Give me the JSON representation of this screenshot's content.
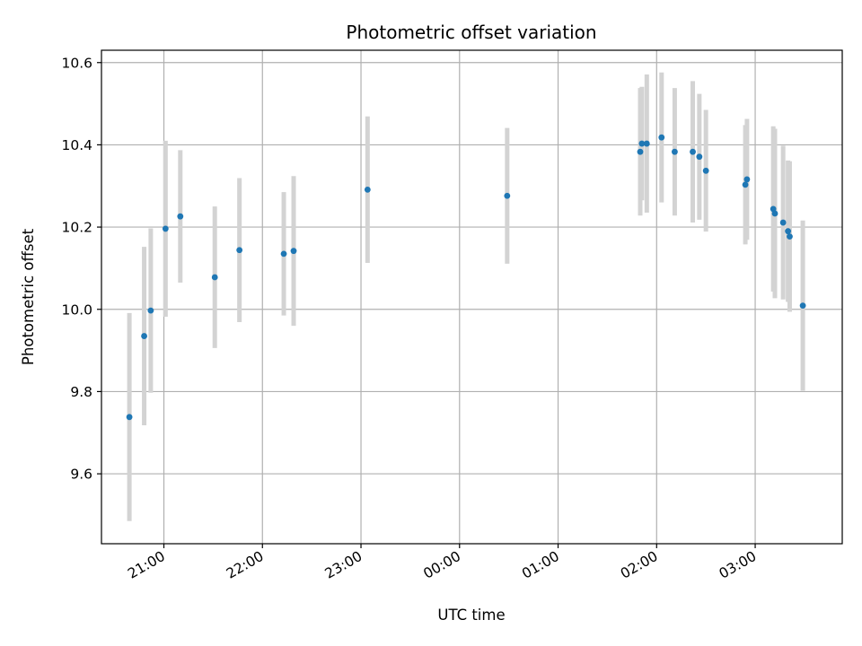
{
  "chart_data": {
    "type": "scatter",
    "title": "Photometric offset variation",
    "xlabel": "UTC time",
    "ylabel": "Photometric offset",
    "x_axis_type": "time",
    "xlim": [
      "20:22",
      "03:53"
    ],
    "ylim": [
      9.43,
      10.63
    ],
    "grid": true,
    "x_ticks": [
      "21:00",
      "22:00",
      "23:00",
      "00:00",
      "01:00",
      "02:00",
      "03:00"
    ],
    "y_ticks": [
      9.6,
      9.8,
      10.0,
      10.2,
      10.4,
      10.6
    ],
    "y_tick_labels": [
      "9.6",
      "9.8",
      "10.0",
      "10.2",
      "10.4",
      "10.6"
    ],
    "marker_color": "#1f77b4",
    "errorbar_color": "#d3d3d3",
    "points": [
      {
        "time": "20:39",
        "y": 9.738,
        "err": 0.253
      },
      {
        "time": "20:48",
        "y": 9.935,
        "err": 0.217
      },
      {
        "time": "20:52",
        "y": 9.997,
        "err": 0.2
      },
      {
        "time": "21:01",
        "y": 10.196,
        "err": 0.214
      },
      {
        "time": "21:10",
        "y": 10.226,
        "err": 0.161
      },
      {
        "time": "21:31",
        "y": 10.078,
        "err": 0.172
      },
      {
        "time": "21:46",
        "y": 10.144,
        "err": 0.175
      },
      {
        "time": "22:13",
        "y": 10.135,
        "err": 0.15
      },
      {
        "time": "22:19",
        "y": 10.142,
        "err": 0.182
      },
      {
        "time": "23:04",
        "y": 10.291,
        "err": 0.178
      },
      {
        "time": "00:29",
        "y": 10.276,
        "err": 0.165
      },
      {
        "time": "01:50",
        "y": 10.383,
        "err": 0.155
      },
      {
        "time": "01:51",
        "y": 10.403,
        "err": 0.138
      },
      {
        "time": "01:54",
        "y": 10.403,
        "err": 0.168
      },
      {
        "time": "02:03",
        "y": 10.418,
        "err": 0.158
      },
      {
        "time": "02:11",
        "y": 10.383,
        "err": 0.155
      },
      {
        "time": "02:22",
        "y": 10.383,
        "err": 0.172
      },
      {
        "time": "02:26",
        "y": 10.371,
        "err": 0.153
      },
      {
        "time": "02:30",
        "y": 10.337,
        "err": 0.148
      },
      {
        "time": "02:54",
        "y": 10.303,
        "err": 0.145
      },
      {
        "time": "02:55",
        "y": 10.316,
        "err": 0.147
      },
      {
        "time": "03:11",
        "y": 10.244,
        "err": 0.201
      },
      {
        "time": "03:12",
        "y": 10.233,
        "err": 0.206
      },
      {
        "time": "03:17",
        "y": 10.211,
        "err": 0.187
      },
      {
        "time": "03:20",
        "y": 10.19,
        "err": 0.172
      },
      {
        "time": "03:21",
        "y": 10.177,
        "err": 0.183
      },
      {
        "time": "03:29",
        "y": 10.009,
        "err": 0.207
      }
    ]
  }
}
